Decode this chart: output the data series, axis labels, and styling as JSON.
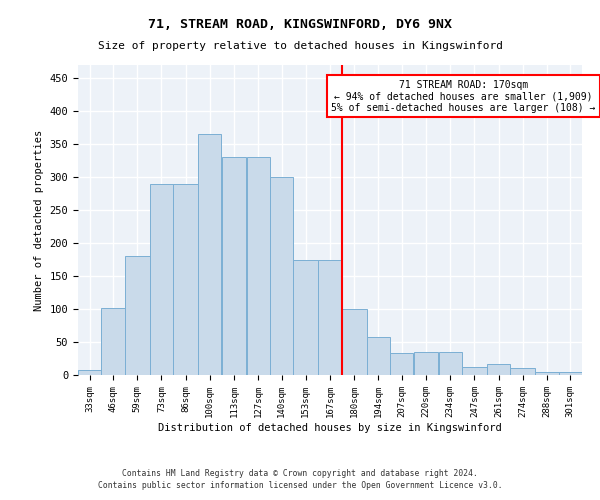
{
  "title": "71, STREAM ROAD, KINGSWINFORD, DY6 9NX",
  "subtitle": "Size of property relative to detached houses in Kingswinford",
  "xlabel": "Distribution of detached houses by size in Kingswinford",
  "ylabel": "Number of detached properties",
  "footnote1": "Contains HM Land Registry data © Crown copyright and database right 2024.",
  "footnote2": "Contains public sector information licensed under the Open Government Licence v3.0.",
  "categories": [
    "33sqm",
    "46sqm",
    "59sqm",
    "73sqm",
    "86sqm",
    "100sqm",
    "113sqm",
    "127sqm",
    "140sqm",
    "153sqm",
    "167sqm",
    "180sqm",
    "194sqm",
    "207sqm",
    "220sqm",
    "234sqm",
    "247sqm",
    "261sqm",
    "274sqm",
    "288sqm",
    "301sqm"
  ],
  "bar_heights": [
    8,
    101,
    181,
    290,
    290,
    365,
    330,
    330,
    300,
    175,
    175,
    100,
    58,
    33,
    35,
    35,
    12,
    17,
    10,
    5,
    5
  ],
  "bar_color": "#c9daea",
  "bar_edge_color": "#7bafd4",
  "vline_color": "red",
  "annotation_line1": "71 STREAM ROAD: 170sqm",
  "annotation_line2": "← 94% of detached houses are smaller (1,909)",
  "annotation_line3": "5% of semi-detached houses are larger (108) →",
  "ylim": [
    0,
    470
  ],
  "yticks": [
    0,
    50,
    100,
    150,
    200,
    250,
    300,
    350,
    400,
    450
  ],
  "bg_color": "#edf2f8",
  "grid_color": "white",
  "bin_edges": [
    33,
    46,
    59,
    73,
    86,
    100,
    113,
    127,
    140,
    153,
    167,
    180,
    194,
    207,
    220,
    234,
    247,
    261,
    274,
    288,
    301,
    314
  ]
}
